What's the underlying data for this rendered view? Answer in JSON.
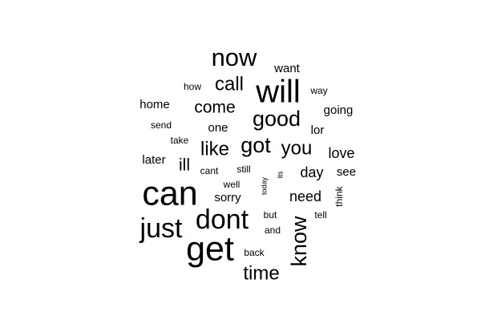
{
  "chart_data": {
    "type": "wordcloud",
    "background_color": "#ffffff",
    "word_color": "#000000",
    "words": [
      {
        "text": "now",
        "weight": 10,
        "rotated": false
      },
      {
        "text": "want",
        "weight": 5,
        "rotated": false
      },
      {
        "text": "will",
        "weight": 13,
        "rotated": false
      },
      {
        "text": "call",
        "weight": 8,
        "rotated": false
      },
      {
        "text": "how",
        "weight": 4,
        "rotated": false
      },
      {
        "text": "way",
        "weight": 4,
        "rotated": false
      },
      {
        "text": "home",
        "weight": 5,
        "rotated": false
      },
      {
        "text": "come",
        "weight": 7,
        "rotated": false
      },
      {
        "text": "going",
        "weight": 5,
        "rotated": false
      },
      {
        "text": "good",
        "weight": 9,
        "rotated": false
      },
      {
        "text": "send",
        "weight": 4,
        "rotated": false
      },
      {
        "text": "one",
        "weight": 5,
        "rotated": false
      },
      {
        "text": "lor",
        "weight": 5,
        "rotated": false
      },
      {
        "text": "take",
        "weight": 4,
        "rotated": false
      },
      {
        "text": "like",
        "weight": 8,
        "rotated": false
      },
      {
        "text": "got",
        "weight": 9,
        "rotated": false
      },
      {
        "text": "you",
        "weight": 8,
        "rotated": false
      },
      {
        "text": "love",
        "weight": 6,
        "rotated": false
      },
      {
        "text": "later",
        "weight": 5,
        "rotated": false
      },
      {
        "text": "ill",
        "weight": 7,
        "rotated": false
      },
      {
        "text": "cant",
        "weight": 4,
        "rotated": false
      },
      {
        "text": "still",
        "weight": 4,
        "rotated": false
      },
      {
        "text": "its",
        "weight": 3,
        "rotated": true
      },
      {
        "text": "day",
        "weight": 6,
        "rotated": false
      },
      {
        "text": "see",
        "weight": 5,
        "rotated": false
      },
      {
        "text": "can",
        "weight": 14,
        "rotated": false
      },
      {
        "text": "well",
        "weight": 4,
        "rotated": false
      },
      {
        "text": "today",
        "weight": 3,
        "rotated": true
      },
      {
        "text": "sorry",
        "weight": 5,
        "rotated": false
      },
      {
        "text": "need",
        "weight": 6,
        "rotated": false
      },
      {
        "text": "think",
        "weight": 4,
        "rotated": true
      },
      {
        "text": "dont",
        "weight": 11,
        "rotated": false
      },
      {
        "text": "but",
        "weight": 4,
        "rotated": false
      },
      {
        "text": "tell",
        "weight": 4,
        "rotated": false
      },
      {
        "text": "just",
        "weight": 11,
        "rotated": false
      },
      {
        "text": "and",
        "weight": 4,
        "rotated": false
      },
      {
        "text": "know",
        "weight": 9,
        "rotated": true
      },
      {
        "text": "get",
        "weight": 14,
        "rotated": false
      },
      {
        "text": "back",
        "weight": 4,
        "rotated": false
      },
      {
        "text": "time",
        "weight": 8,
        "rotated": false
      }
    ]
  }
}
